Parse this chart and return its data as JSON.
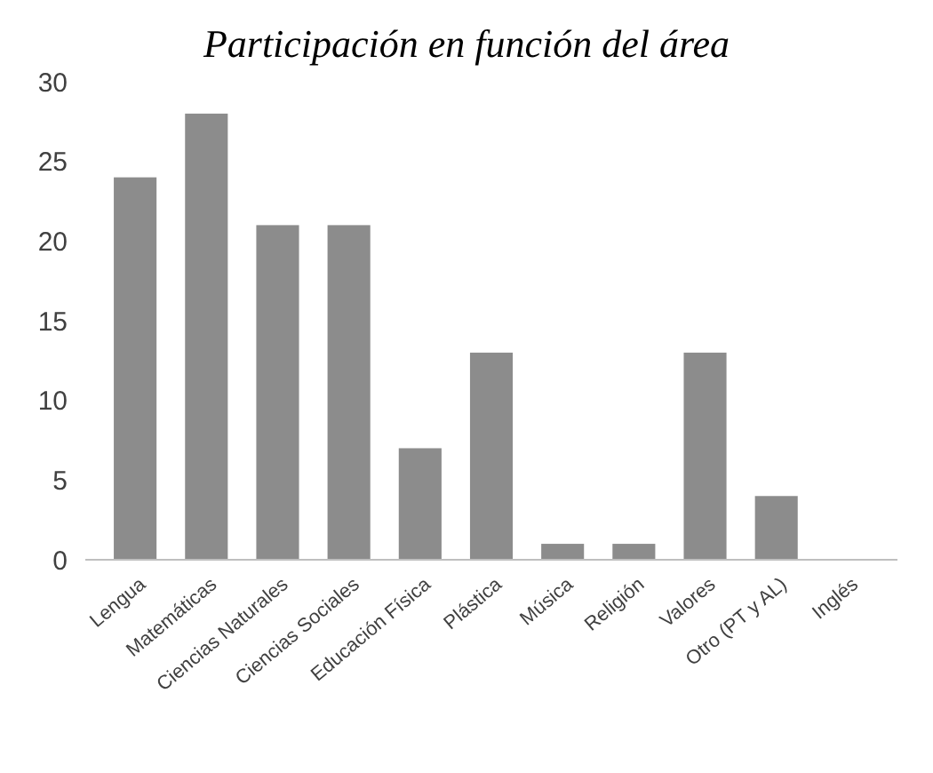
{
  "chart_data": {
    "type": "bar",
    "title": "Participación en función del área",
    "categories": [
      "Lengua",
      "Matemáticas",
      "Ciencias Naturales",
      "Ciencias Sociales",
      "Educación Física",
      "Plástica",
      "Música",
      "Religión",
      "Valores",
      "Otro (PT y AL)",
      "Inglés"
    ],
    "values": [
      24,
      28,
      21,
      21,
      7,
      13,
      1,
      1,
      13,
      4,
      0
    ],
    "color": "#8c8c8c",
    "ylim": [
      0,
      30
    ],
    "yticks": [
      0,
      5,
      10,
      15,
      20,
      25,
      30
    ],
    "grid": false
  }
}
